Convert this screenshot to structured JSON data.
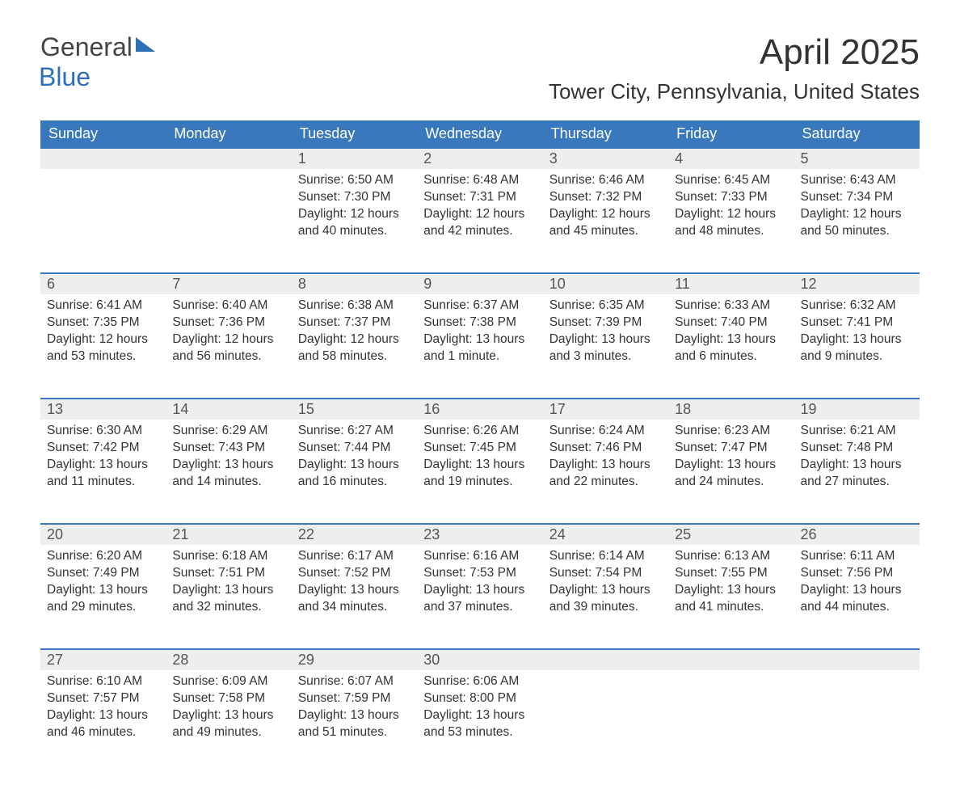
{
  "brand": {
    "part1": "General",
    "part2": "Blue"
  },
  "title": "April 2025",
  "location": "Tower City, Pennsylvania, United States",
  "header_bg": "#3a78bd",
  "header_fg": "#ffffff",
  "daynum_bg": "#eeeeee",
  "row_border_color": "#3a78bd",
  "weekdays": [
    "Sunday",
    "Monday",
    "Tuesday",
    "Wednesday",
    "Thursday",
    "Friday",
    "Saturday"
  ],
  "weeks": [
    [
      null,
      null,
      {
        "n": "1",
        "sunrise": "6:50 AM",
        "sunset": "7:30 PM",
        "daylight": "12 hours and 40 minutes."
      },
      {
        "n": "2",
        "sunrise": "6:48 AM",
        "sunset": "7:31 PM",
        "daylight": "12 hours and 42 minutes."
      },
      {
        "n": "3",
        "sunrise": "6:46 AM",
        "sunset": "7:32 PM",
        "daylight": "12 hours and 45 minutes."
      },
      {
        "n": "4",
        "sunrise": "6:45 AM",
        "sunset": "7:33 PM",
        "daylight": "12 hours and 48 minutes."
      },
      {
        "n": "5",
        "sunrise": "6:43 AM",
        "sunset": "7:34 PM",
        "daylight": "12 hours and 50 minutes."
      }
    ],
    [
      {
        "n": "6",
        "sunrise": "6:41 AM",
        "sunset": "7:35 PM",
        "daylight": "12 hours and 53 minutes."
      },
      {
        "n": "7",
        "sunrise": "6:40 AM",
        "sunset": "7:36 PM",
        "daylight": "12 hours and 56 minutes."
      },
      {
        "n": "8",
        "sunrise": "6:38 AM",
        "sunset": "7:37 PM",
        "daylight": "12 hours and 58 minutes."
      },
      {
        "n": "9",
        "sunrise": "6:37 AM",
        "sunset": "7:38 PM",
        "daylight": "13 hours and 1 minute."
      },
      {
        "n": "10",
        "sunrise": "6:35 AM",
        "sunset": "7:39 PM",
        "daylight": "13 hours and 3 minutes."
      },
      {
        "n": "11",
        "sunrise": "6:33 AM",
        "sunset": "7:40 PM",
        "daylight": "13 hours and 6 minutes."
      },
      {
        "n": "12",
        "sunrise": "6:32 AM",
        "sunset": "7:41 PM",
        "daylight": "13 hours and 9 minutes."
      }
    ],
    [
      {
        "n": "13",
        "sunrise": "6:30 AM",
        "sunset": "7:42 PM",
        "daylight": "13 hours and 11 minutes."
      },
      {
        "n": "14",
        "sunrise": "6:29 AM",
        "sunset": "7:43 PM",
        "daylight": "13 hours and 14 minutes."
      },
      {
        "n": "15",
        "sunrise": "6:27 AM",
        "sunset": "7:44 PM",
        "daylight": "13 hours and 16 minutes."
      },
      {
        "n": "16",
        "sunrise": "6:26 AM",
        "sunset": "7:45 PM",
        "daylight": "13 hours and 19 minutes."
      },
      {
        "n": "17",
        "sunrise": "6:24 AM",
        "sunset": "7:46 PM",
        "daylight": "13 hours and 22 minutes."
      },
      {
        "n": "18",
        "sunrise": "6:23 AM",
        "sunset": "7:47 PM",
        "daylight": "13 hours and 24 minutes."
      },
      {
        "n": "19",
        "sunrise": "6:21 AM",
        "sunset": "7:48 PM",
        "daylight": "13 hours and 27 minutes."
      }
    ],
    [
      {
        "n": "20",
        "sunrise": "6:20 AM",
        "sunset": "7:49 PM",
        "daylight": "13 hours and 29 minutes."
      },
      {
        "n": "21",
        "sunrise": "6:18 AM",
        "sunset": "7:51 PM",
        "daylight": "13 hours and 32 minutes."
      },
      {
        "n": "22",
        "sunrise": "6:17 AM",
        "sunset": "7:52 PM",
        "daylight": "13 hours and 34 minutes."
      },
      {
        "n": "23",
        "sunrise": "6:16 AM",
        "sunset": "7:53 PM",
        "daylight": "13 hours and 37 minutes."
      },
      {
        "n": "24",
        "sunrise": "6:14 AM",
        "sunset": "7:54 PM",
        "daylight": "13 hours and 39 minutes."
      },
      {
        "n": "25",
        "sunrise": "6:13 AM",
        "sunset": "7:55 PM",
        "daylight": "13 hours and 41 minutes."
      },
      {
        "n": "26",
        "sunrise": "6:11 AM",
        "sunset": "7:56 PM",
        "daylight": "13 hours and 44 minutes."
      }
    ],
    [
      {
        "n": "27",
        "sunrise": "6:10 AM",
        "sunset": "7:57 PM",
        "daylight": "13 hours and 46 minutes."
      },
      {
        "n": "28",
        "sunrise": "6:09 AM",
        "sunset": "7:58 PM",
        "daylight": "13 hours and 49 minutes."
      },
      {
        "n": "29",
        "sunrise": "6:07 AM",
        "sunset": "7:59 PM",
        "daylight": "13 hours and 51 minutes."
      },
      {
        "n": "30",
        "sunrise": "6:06 AM",
        "sunset": "8:00 PM",
        "daylight": "13 hours and 53 minutes."
      },
      null,
      null,
      null
    ]
  ],
  "labels": {
    "sunrise": "Sunrise: ",
    "sunset": "Sunset: ",
    "daylight": "Daylight: "
  }
}
